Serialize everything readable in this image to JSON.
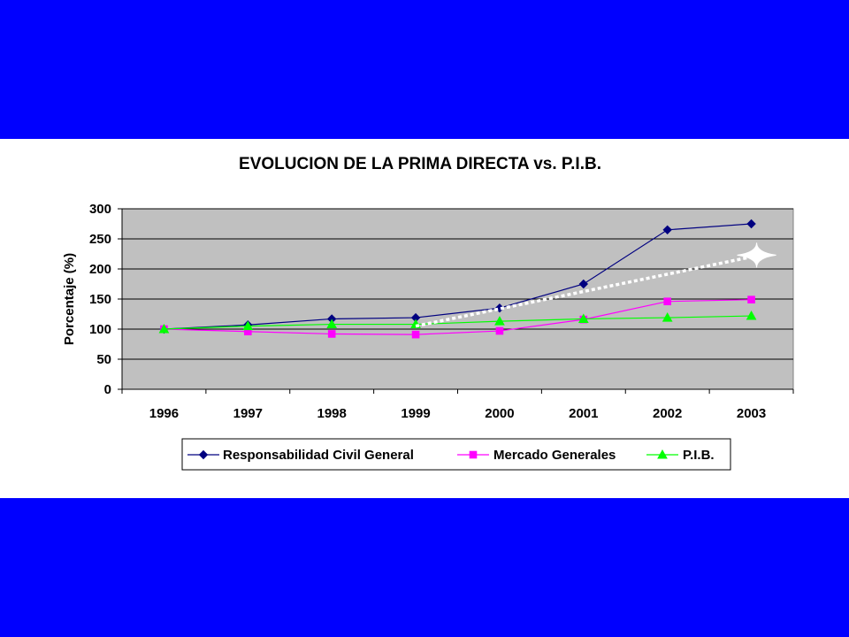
{
  "chart_data": {
    "type": "line",
    "title": "EVOLUCION DE LA PRIMA DIRECTA vs. P.I.B.",
    "xlabel": "",
    "ylabel": "Porcentaje (%)",
    "categories": [
      "1996",
      "1997",
      "1998",
      "1999",
      "2000",
      "2001",
      "2002",
      "2003"
    ],
    "ylim": [
      0,
      300
    ],
    "yticks": [
      0,
      50,
      100,
      150,
      200,
      250,
      300
    ],
    "grid": true,
    "legend_position": "bottom",
    "plot_background": "#C0C0C0",
    "series": [
      {
        "name": "Responsabilidad Civil General",
        "color": "#000080",
        "marker": "diamond",
        "values": [
          100,
          107,
          117,
          119,
          135,
          175,
          265,
          275
        ]
      },
      {
        "name": "Mercado Generales",
        "color": "#FF00FF",
        "marker": "square",
        "values": [
          100,
          96,
          92,
          91,
          97,
          116,
          146,
          149
        ]
      },
      {
        "name": "P.I.B.",
        "color": "#00FF00",
        "marker": "triangle",
        "values": [
          100,
          105,
          108,
          108,
          113,
          117,
          119,
          122
        ]
      }
    ],
    "annotation": {
      "type": "dotted-trend",
      "color": "#FFFFFF",
      "from_category": "1999",
      "from_value": 105,
      "to_category": "2003",
      "to_value": 220,
      "end_marker": "star"
    }
  }
}
